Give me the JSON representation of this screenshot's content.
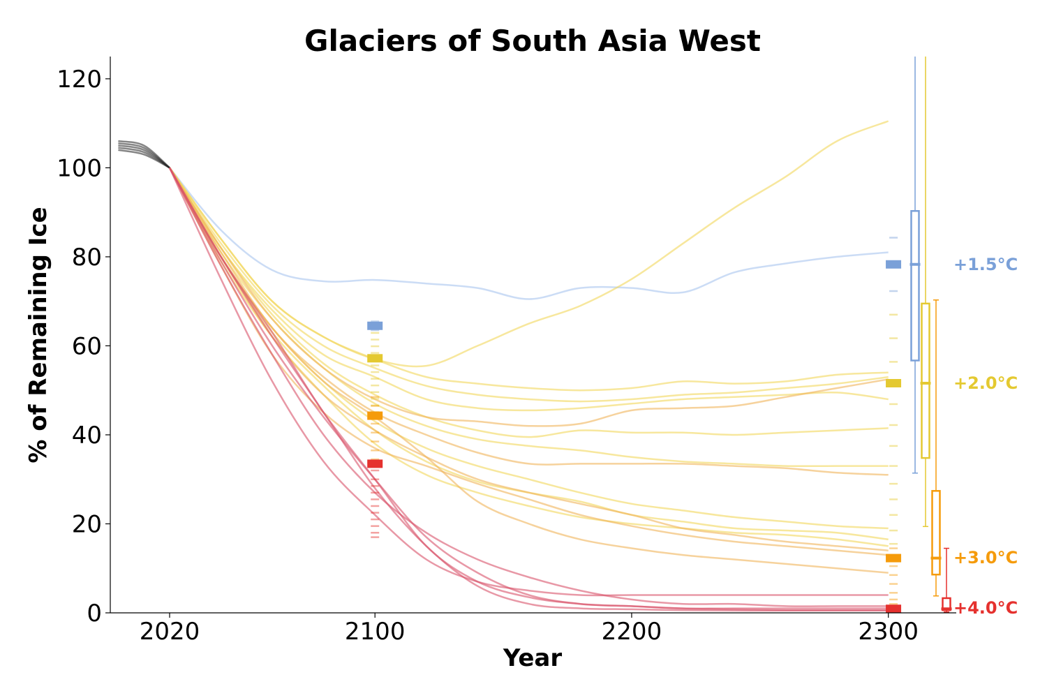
{
  "chart_data": {
    "type": "line",
    "title": "Glaciers of South Asia West",
    "xlabel": "Year",
    "ylabel": "% of Remaining Ice",
    "xlim": [
      1997,
      2325
    ],
    "ylim": [
      0,
      125
    ],
    "xticks": [
      2020,
      2100,
      2200,
      2300
    ],
    "yticks": [
      0,
      20,
      40,
      60,
      80,
      100,
      120
    ],
    "grid": false,
    "legend": "none",
    "historical": {
      "color": "#222222",
      "x": [
        2000,
        2010,
        2020
      ],
      "series": [
        [
          104,
          103,
          100
        ],
        [
          104.5,
          103.5,
          100
        ],
        [
          105,
          104,
          100
        ],
        [
          105.5,
          104.5,
          100
        ],
        [
          106,
          105,
          100
        ]
      ]
    },
    "scenarios": [
      {
        "label": "+1.5°C",
        "color": "#7aa0d8",
        "line_color": "#a9c4ef",
        "median_2100": 64.5,
        "markers_2100": [
          65.5,
          64.5,
          63.5
        ],
        "median_2300": 78.3,
        "markers_2300": [
          84.3,
          78.3,
          72.3
        ],
        "box": {
          "q1": 56.7,
          "median": 78.3,
          "q3": 90.3,
          "whisker_low": 31.4,
          "whisker_high": 125
        },
        "series": [
          {
            "x": [
              2020,
              2040,
              2060,
              2080,
              2100,
              2120,
              2140,
              2160,
              2180,
              2200,
              2220,
              2240,
              2260,
              2280,
              2300
            ],
            "y": [
              100,
              86,
              77,
              74.5,
              74.8,
              74,
              73,
              70.5,
              73,
              73,
              72,
              76.5,
              78.5,
              80,
              81
            ]
          }
        ]
      },
      {
        "label": "+2.0°C",
        "color": "#e4c931",
        "line_color": "#f2d75c",
        "median_2100": 57.2,
        "markers_2100": [
          62.9,
          61.4,
          59.9,
          58.4,
          57.2,
          55.6,
          54.1,
          52.6,
          51.1,
          49.6,
          48.1,
          46.6,
          45.1,
          43.6
        ],
        "median_2300": 51.6,
        "markers_2300": [
          67,
          61.7,
          56.4,
          51.6,
          46.9,
          42.2,
          37.5,
          33,
          29,
          25.5,
          22,
          18.5,
          15.5
        ],
        "box": {
          "q1": 34.8,
          "median": 51.6,
          "q3": 69.5,
          "whisker_low": 19.4,
          "whisker_high": 125
        },
        "series": [
          {
            "x": [
              2020,
              2040,
              2060,
              2080,
              2100,
              2120,
              2140,
              2160,
              2180,
              2200,
              2220,
              2240,
              2260,
              2280,
              2300
            ],
            "y": [
              100,
              84,
              70,
              62,
              57,
              55.5,
              60,
              65,
              69,
              75,
              83,
              91,
              98,
              106,
              110.5
            ]
          },
          {
            "x": [
              2020,
              2040,
              2060,
              2080,
              2100,
              2120,
              2140,
              2160,
              2180,
              2200,
              2220,
              2240,
              2260,
              2280,
              2300
            ],
            "y": [
              100,
              84,
              70,
              62,
              57,
              53,
              51.5,
              50.5,
              50,
              50.5,
              52,
              51.5,
              52,
              53.5,
              54
            ]
          },
          {
            "x": [
              2020,
              2040,
              2060,
              2080,
              2100,
              2120,
              2140,
              2160,
              2180,
              2200,
              2220,
              2240,
              2260,
              2280,
              2300
            ],
            "y": [
              100,
              83,
              69,
              60,
              55,
              51,
              49,
              48,
              47.5,
              48,
              49,
              49.5,
              50.5,
              51.5,
              53
            ]
          },
          {
            "x": [
              2020,
              2040,
              2060,
              2080,
              2100,
              2120,
              2140,
              2160,
              2180,
              2200,
              2220,
              2240,
              2260,
              2280,
              2300
            ],
            "y": [
              100,
              82,
              68,
              58,
              53,
              48,
              46,
              45.5,
              46,
              47,
              48,
              48.5,
              49,
              49.5,
              48
            ]
          },
          {
            "x": [
              2020,
              2040,
              2060,
              2080,
              2100,
              2120,
              2140,
              2160,
              2180,
              2200,
              2220,
              2240,
              2260,
              2280,
              2300
            ],
            "y": [
              100,
              82,
              67,
              56,
              49,
              44,
              41,
              39.5,
              41,
              40.5,
              40.5,
              40,
              40.5,
              41,
              41.5
            ]
          },
          {
            "x": [
              2020,
              2040,
              2060,
              2080,
              2100,
              2120,
              2140,
              2160,
              2180,
              2200,
              2220,
              2240,
              2260,
              2280,
              2300
            ],
            "y": [
              100,
              81,
              66,
              55,
              47,
              42,
              39,
              37.5,
              36.5,
              35,
              34,
              33.5,
              33,
              33,
              33
            ]
          },
          {
            "x": [
              2020,
              2040,
              2060,
              2080,
              2100,
              2120,
              2140,
              2160,
              2180,
              2200,
              2220,
              2240,
              2260,
              2280,
              2300
            ],
            "y": [
              100,
              80,
              64,
              52,
              43,
              37,
              33,
              30,
              27,
              24.5,
              23,
              21.5,
              20.5,
              19.5,
              19
            ]
          },
          {
            "x": [
              2020,
              2040,
              2060,
              2080,
              2100,
              2120,
              2140,
              2160,
              2180,
              2200,
              2220,
              2240,
              2260,
              2280,
              2300
            ],
            "y": [
              100,
              80,
              63,
              51,
              41,
              34,
              29.5,
              27,
              25,
              22,
              20.5,
              19,
              18.5,
              18,
              16.5
            ]
          },
          {
            "x": [
              2020,
              2040,
              2060,
              2080,
              2100,
              2120,
              2140,
              2160,
              2180,
              2200,
              2220,
              2240,
              2260,
              2280,
              2300
            ],
            "y": [
              100,
              79,
              62,
              49,
              38,
              31,
              27,
              24,
              21.5,
              20,
              19,
              18,
              17.5,
              16.5,
              15
            ]
          }
        ]
      },
      {
        "label": "+3.0°C",
        "color": "#f59b0b",
        "line_color": "#f0b45a",
        "median_2100": 44.3,
        "markers_2100": [
          48.5,
          46.5,
          44.3,
          42.5,
          40.5,
          38.5,
          36.5,
          34.5
        ],
        "median_2300": 12.3,
        "markers_2300": [
          14.5,
          12.3,
          10.5,
          8.5,
          6.5,
          4.5,
          3,
          2
        ],
        "box": {
          "q1": 8.6,
          "median": 12.3,
          "q3": 27.4,
          "whisker_low": 3.8,
          "whisker_high": 70.3
        },
        "series": [
          {
            "x": [
              2020,
              2040,
              2060,
              2080,
              2100,
              2120,
              2140,
              2160,
              2180,
              2200,
              2220,
              2240,
              2260,
              2280,
              2300
            ],
            "y": [
              100,
              82,
              66,
              55,
              48,
              44,
              43,
              42,
              42.5,
              45.5,
              46,
              46.5,
              48.5,
              50.5,
              52.5
            ]
          },
          {
            "x": [
              2020,
              2040,
              2060,
              2080,
              2100,
              2120,
              2140,
              2160,
              2180,
              2200,
              2220,
              2240,
              2260,
              2280,
              2300
            ],
            "y": [
              100,
              81,
              64,
              53,
              45,
              40,
              36,
              33.5,
              33.5,
              33.5,
              33.5,
              33,
              32.5,
              31.5,
              31
            ]
          },
          {
            "x": [
              2020,
              2040,
              2060,
              2080,
              2100,
              2120,
              2140,
              2160,
              2180,
              2200,
              2220,
              2240,
              2260,
              2280,
              2300
            ],
            "y": [
              100,
              80,
              62,
              49,
              41,
              35,
              30,
              27,
              24.5,
              22,
              19,
              17.5,
              16,
              15,
              14
            ]
          },
          {
            "x": [
              2020,
              2040,
              2060,
              2080,
              2100,
              2120,
              2140,
              2160,
              2180,
              2200,
              2220,
              2240,
              2260,
              2280,
              2300
            ],
            "y": [
              100,
              78,
              58,
              45,
              37,
              33,
              29,
              25.5,
              22,
              19.5,
              17.5,
              16,
              15,
              14,
              13
            ]
          },
          {
            "x": [
              2020,
              2040,
              2060,
              2080,
              2100,
              2120,
              2140,
              2160,
              2180,
              2200,
              2220,
              2240,
              2260,
              2280,
              2300
            ],
            "y": [
              100,
              80,
              64,
              52,
              44,
              35,
              25,
              20,
              16.5,
              14.5,
              13,
              12,
              11,
              10,
              9
            ]
          }
        ]
      },
      {
        "label": "+4.0°C",
        "color": "#e5312e",
        "line_color": "#d9546a",
        "median_2100": 33.5,
        "markers_2100": [
          32,
          30,
          28.5,
          27,
          25.5,
          24,
          22.5,
          21,
          19.5,
          18,
          17
        ],
        "median_2300": 0.9,
        "markers_2300": [
          1.5,
          1,
          0.6
        ],
        "box": {
          "q1": 0.6,
          "median": 0.9,
          "q3": 3.3,
          "whisker_low": 0.2,
          "whisker_high": 14.5
        },
        "series": [
          {
            "x": [
              2020,
              2040,
              2060,
              2080,
              2100,
              2120,
              2140,
              2160,
              2180,
              2200,
              2220,
              2240,
              2260,
              2280,
              2300
            ],
            "y": [
              100,
              75,
              52,
              34,
              22,
              12,
              7,
              5,
              4,
              4,
              4,
              4,
              4,
              4,
              4
            ]
          },
          {
            "x": [
              2020,
              2040,
              2060,
              2080,
              2100,
              2120,
              2140,
              2160,
              2180,
              2200,
              2220,
              2240,
              2260,
              2280,
              2300
            ],
            "y": [
              100,
              78,
              58,
              40,
              27,
              18,
              12,
              8,
              5,
              3,
              2,
              2,
              1.5,
              1.5,
              1.5
            ]
          },
          {
            "x": [
              2020,
              2040,
              2060,
              2080,
              2100,
              2120,
              2140,
              2160,
              2180,
              2200,
              2220,
              2240,
              2260,
              2280,
              2300
            ],
            "y": [
              100,
              79,
              60,
              44,
              30,
              17,
              9,
              4,
              2,
              1.5,
              1,
              1,
              1,
              1,
              1
            ]
          },
          {
            "x": [
              2020,
              2040,
              2060,
              2080,
              2100,
              2120,
              2140,
              2160,
              2180,
              2200,
              2220,
              2240,
              2260,
              2280,
              2300
            ],
            "y": [
              100,
              80,
              62,
              45,
              28,
              15,
              6,
              2,
              1,
              0.8,
              0.6,
              0.5,
              0.5,
              0.5,
              0.5
            ]
          },
          {
            "x": [
              2020,
              2040,
              2060,
              2080,
              2100,
              2120,
              2140,
              2160,
              2180,
              2200,
              2220,
              2240,
              2260,
              2280,
              2300
            ],
            "y": [
              100,
              80,
              63,
              45,
              30,
              15,
              7,
              3.5,
              2,
              1.5,
              1,
              0.8,
              0.6,
              0.6,
              0.6
            ]
          }
        ]
      }
    ]
  }
}
